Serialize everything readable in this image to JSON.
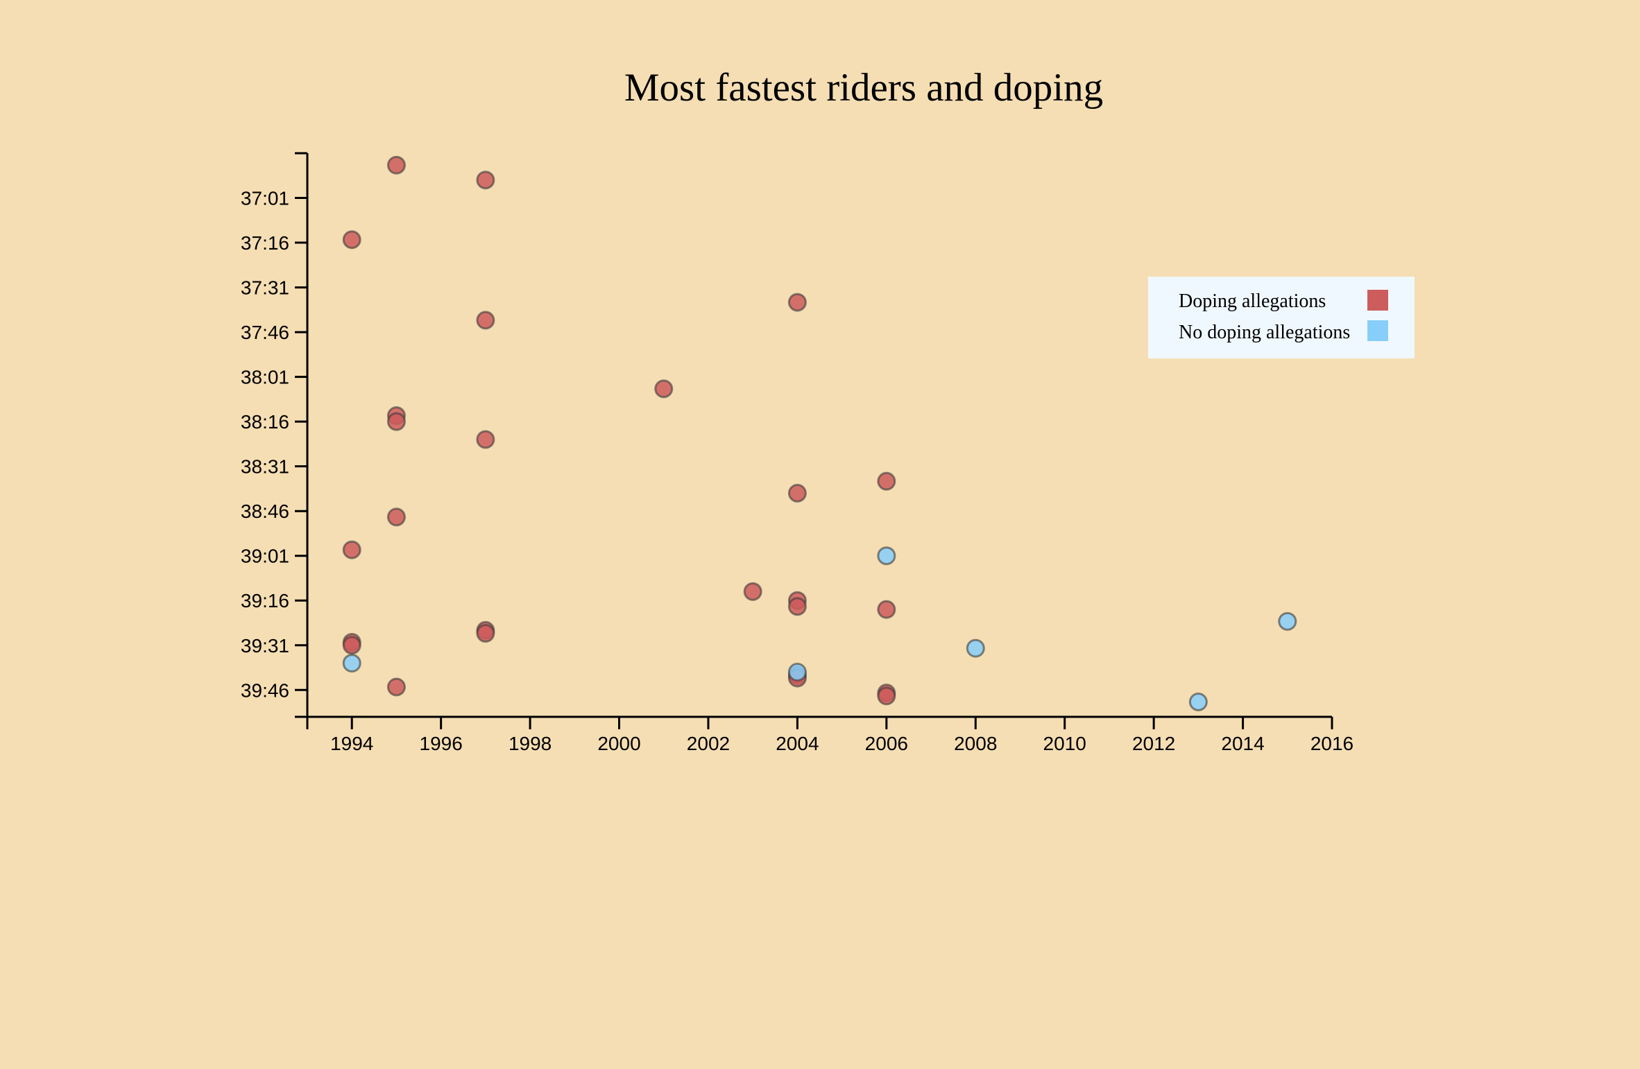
{
  "chart_data": {
    "type": "scatter",
    "title": "Most fastest riders and doping",
    "xlabel": "",
    "ylabel": "",
    "xlim": [
      1993,
      2016
    ],
    "ylim_seconds": [
      2206,
      2395
    ],
    "x_ticks": [
      "1994",
      "1996",
      "1998",
      "2000",
      "2002",
      "2004",
      "2006",
      "2008",
      "2010",
      "2012",
      "2014",
      "2016"
    ],
    "x_tick_values": [
      1994,
      1996,
      1998,
      2000,
      2002,
      2004,
      2006,
      2008,
      2010,
      2012,
      2014,
      2016
    ],
    "y_ticks": [
      "37:01",
      "37:16",
      "37:31",
      "37:46",
      "38:01",
      "38:16",
      "38:31",
      "38:46",
      "39:01",
      "39:16",
      "39:31",
      "39:46"
    ],
    "y_tick_values": [
      2221,
      2236,
      2251,
      2266,
      2281,
      2296,
      2311,
      2326,
      2341,
      2356,
      2371,
      2386
    ],
    "y_scale": "reversed (faster times at top)",
    "grid": false,
    "legend_position": "top-right",
    "colors": {
      "doping": "#cd5c5c",
      "no_doping": "#87cefa"
    },
    "series": [
      {
        "name": "Doping allegations",
        "color": "#cd5c5c",
        "points": [
          {
            "year": 1995,
            "time": "36:50"
          },
          {
            "year": 1997,
            "time": "36:55"
          },
          {
            "year": 1994,
            "time": "37:15"
          },
          {
            "year": 2004,
            "time": "37:36"
          },
          {
            "year": 1997,
            "time": "37:42"
          },
          {
            "year": 2001,
            "time": "38:05"
          },
          {
            "year": 1995,
            "time": "38:14"
          },
          {
            "year": 1995,
            "time": "38:16"
          },
          {
            "year": 1997,
            "time": "38:22"
          },
          {
            "year": 2006,
            "time": "38:36"
          },
          {
            "year": 2004,
            "time": "38:40"
          },
          {
            "year": 1995,
            "time": "38:48"
          },
          {
            "year": 1994,
            "time": "38:59"
          },
          {
            "year": 2003,
            "time": "39:13"
          },
          {
            "year": 2004,
            "time": "39:16"
          },
          {
            "year": 2004,
            "time": "39:18"
          },
          {
            "year": 2006,
            "time": "39:19"
          },
          {
            "year": 1997,
            "time": "39:26"
          },
          {
            "year": 1997,
            "time": "39:27"
          },
          {
            "year": 1994,
            "time": "39:30"
          },
          {
            "year": 1994,
            "time": "39:31"
          },
          {
            "year": 2004,
            "time": "39:41"
          },
          {
            "year": 2004,
            "time": "39:42"
          },
          {
            "year": 1995,
            "time": "39:45"
          },
          {
            "year": 2006,
            "time": "39:47"
          },
          {
            "year": 2006,
            "time": "39:48"
          }
        ]
      },
      {
        "name": "No doping allegations",
        "color": "#87cefa",
        "points": [
          {
            "year": 2006,
            "time": "39:01"
          },
          {
            "year": 2015,
            "time": "39:23"
          },
          {
            "year": 2008,
            "time": "39:32"
          },
          {
            "year": 1994,
            "time": "39:37"
          },
          {
            "year": 2004,
            "time": "39:40"
          },
          {
            "year": 2013,
            "time": "39:50"
          }
        ]
      }
    ]
  }
}
